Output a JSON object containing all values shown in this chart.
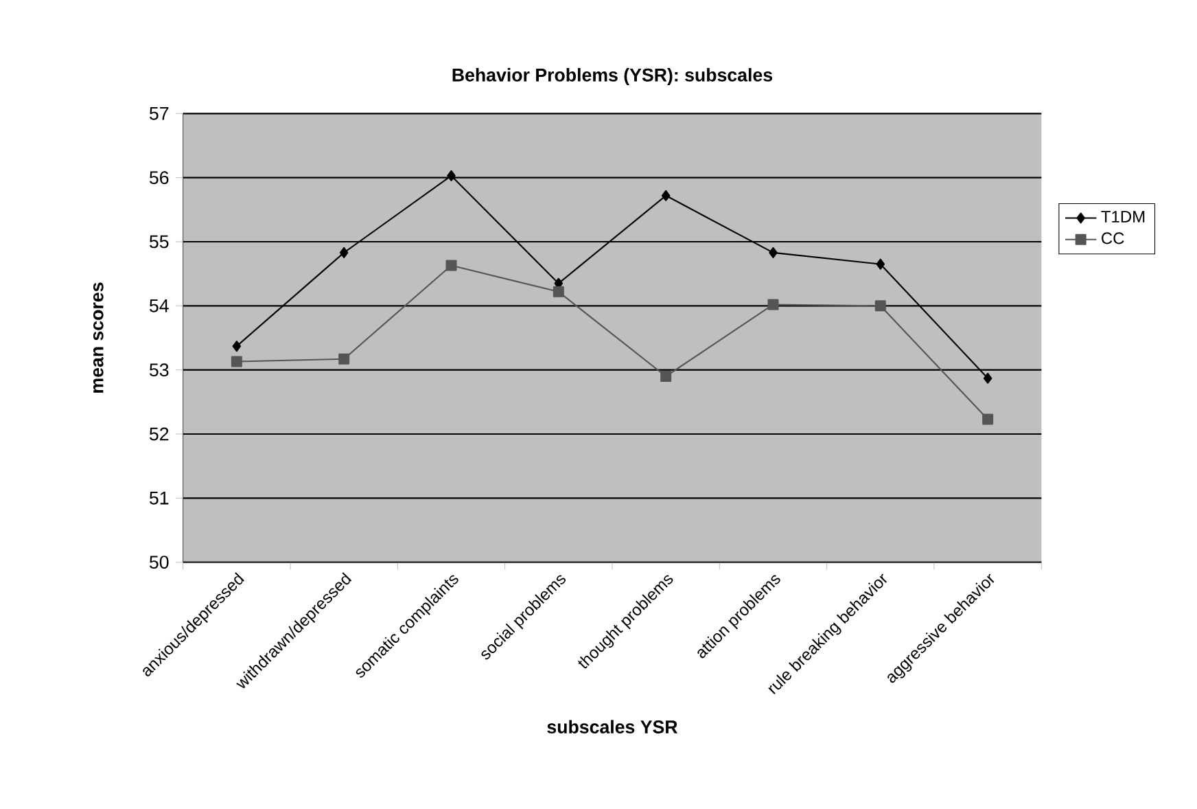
{
  "chart_data": {
    "type": "line",
    "title": "Behavior Problems (YSR): subscales",
    "xlabel": "subscales YSR",
    "ylabel": "mean scores",
    "categories": [
      "anxious/depressed",
      "withdrawn/depressed",
      "somatic complaints",
      "social problems",
      "thought problems",
      "attion problems",
      "rule breaking behavior",
      "aggressive behavior"
    ],
    "series": [
      {
        "name": "T1DM",
        "color": "#000000",
        "marker": "diamond",
        "values": [
          53.37,
          54.83,
          56.03,
          54.35,
          55.72,
          54.83,
          54.65,
          52.87
        ]
      },
      {
        "name": "CC",
        "color": "#555555",
        "marker": "square",
        "values": [
          53.13,
          53.17,
          54.63,
          54.22,
          52.9,
          54.02,
          54.0,
          52.23
        ]
      }
    ],
    "ylim": [
      50,
      57
    ],
    "yticks": [
      50,
      51,
      52,
      53,
      54,
      55,
      56,
      57
    ],
    "grid": "y",
    "legend": "right",
    "line_style": "solid"
  }
}
